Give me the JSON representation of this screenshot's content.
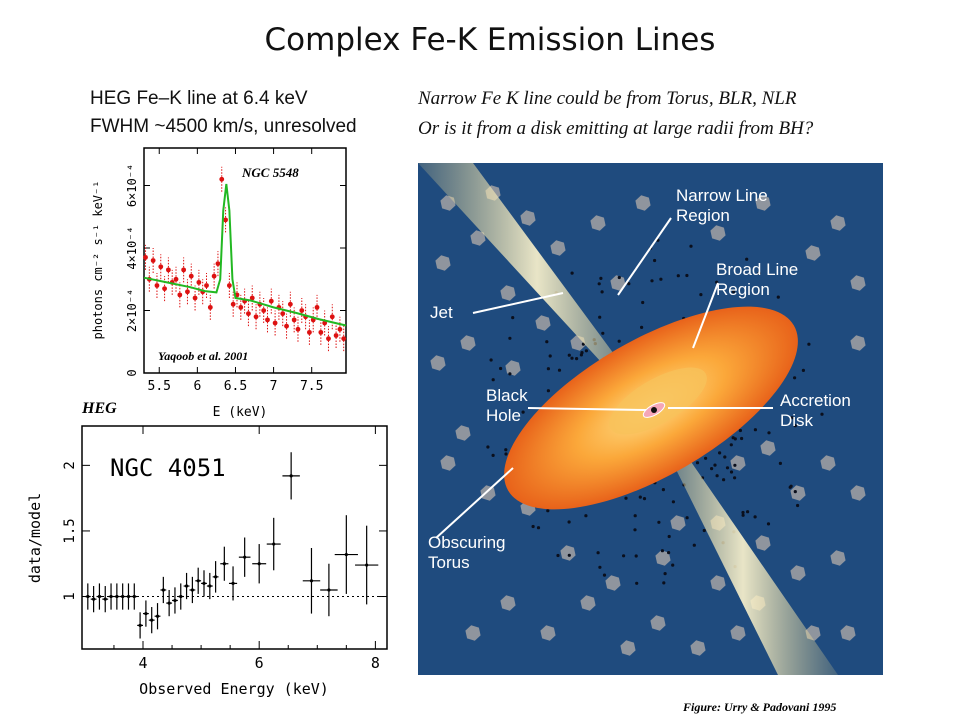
{
  "slide": {
    "title": "Complex Fe-K Emission Lines"
  },
  "left_top": {
    "caption_line1": "HEG Fe–K line at 6.4 keV",
    "caption_line2": "FWHM ~4500 km/s, unresolved",
    "colors": {
      "data": "#dd1111",
      "model": "#22b822"
    }
  },
  "left_bottom": {
    "instrument_label": "HEG",
    "colors": {
      "points": "#000000",
      "reference": "#000000"
    }
  },
  "right_panel": {
    "caption_line1": "Narrow Fe K line could be from Torus, BLR, NLR",
    "caption_line2": "Or is it from a disk emitting at large radii from BH?",
    "labels": {
      "nlr_line1": "Narrow Line",
      "nlr_line2": "Region",
      "blr_line1": "Broad Line",
      "blr_line2": "Region",
      "jet": "Jet",
      "bh_line1": "Black",
      "bh_line2": "Hole",
      "disk_line1": "Accretion",
      "disk_line2": "Disk",
      "torus_line1": "Obscuring",
      "torus_line2": "Torus"
    },
    "credit": "Figure: Urry & Padovani 1995",
    "colors": {
      "background": "#1f4b7e",
      "torus_outer": "#f07a1c",
      "torus_inner": "#fbbf50",
      "clouds": "#8f959e"
    }
  },
  "chart_data": [
    {
      "type": "scatter",
      "title": "NGC 5548",
      "annotation": "Yaqoob et al. 2001",
      "xlabel": "E (keV)",
      "ylabel": "photons cm⁻² s⁻¹ keV⁻¹",
      "xlim": [
        5.3,
        7.95
      ],
      "ylim": [
        0,
        0.00072
      ],
      "x_ticks": [
        5.5,
        6,
        6.5,
        7,
        7.5
      ],
      "x_tick_labels": [
        "5.5",
        "6",
        "6.5",
        "7",
        "7.5"
      ],
      "y_ticks": [
        0,
        0.0002,
        0.0004,
        0.0006
      ],
      "y_tick_labels": [
        "0",
        "2×10⁻⁴",
        "4×10⁻⁴",
        "6×10⁻⁴"
      ],
      "series": [
        {
          "x": [
            5.32,
            5.37,
            5.42,
            5.47,
            5.52,
            5.57,
            5.62,
            5.67,
            5.72,
            5.77,
            5.82,
            5.87,
            5.92,
            5.97,
            6.02,
            6.07,
            6.12,
            6.17,
            6.22,
            6.27,
            6.32,
            6.37,
            6.42,
            6.47,
            6.52,
            6.57,
            6.62,
            6.67,
            6.72,
            6.77,
            6.82,
            6.87,
            6.92,
            6.97,
            7.02,
            7.07,
            7.12,
            7.17,
            7.22,
            7.27,
            7.32,
            7.37,
            7.42,
            7.47,
            7.52,
            7.57,
            7.62,
            7.67,
            7.72,
            7.77,
            7.82,
            7.87,
            7.92
          ],
          "y": [
            0.00037,
            0.0003,
            0.00036,
            0.00028,
            0.00034,
            0.00027,
            0.00033,
            0.00029,
            0.0003,
            0.00025,
            0.00033,
            0.00026,
            0.00031,
            0.00024,
            0.00029,
            0.00026,
            0.00028,
            0.00021,
            0.00031,
            0.00035,
            0.00062,
            0.00049,
            0.00028,
            0.00022,
            0.00025,
            0.00021,
            0.00023,
            0.00019,
            0.00024,
            0.00018,
            0.00022,
            0.0002,
            0.00017,
            0.00023,
            0.00016,
            0.00021,
            0.00019,
            0.00015,
            0.00022,
            0.00017,
            0.00014,
            0.0002,
            0.00018,
            0.00013,
            0.00017,
            0.00021,
            0.00013,
            0.00016,
            0.00011,
            0.00018,
            0.00012,
            0.00014,
            0.00011
          ],
          "err": 4e-05
        },
        {
          "x": [
            5.3,
            5.6,
            5.9,
            6.1,
            6.25,
            6.3,
            6.34,
            6.38,
            6.42,
            6.46,
            6.5,
            6.7,
            7.0,
            7.3,
            7.6,
            7.95
          ],
          "y": [
            0.000305,
            0.00029,
            0.000275,
            0.000262,
            0.000258,
            0.0003,
            0.00052,
            0.000605,
            0.00052,
            0.0003,
            0.00024,
            0.000232,
            0.00021,
            0.000192,
            0.000172,
            0.000152
          ]
        }
      ]
    },
    {
      "type": "scatter",
      "title": "NGC 4051",
      "xlabel": "Observed Energy (keV)",
      "ylabel": "data/model",
      "xlim": [
        2.95,
        8.2
      ],
      "ylim": [
        0.6,
        2.3
      ],
      "x_ticks": [
        4,
        6,
        8
      ],
      "x_tick_labels": [
        "4",
        "6",
        "8"
      ],
      "y_ticks": [
        1,
        1.5,
        2
      ],
      "y_tick_labels": [
        "1",
        "1.5",
        "2"
      ],
      "reference_y": 1,
      "series": [
        {
          "x": [
            3.05,
            3.15,
            3.25,
            3.35,
            3.45,
            3.55,
            3.65,
            3.75,
            3.85,
            3.95,
            4.05,
            4.15,
            4.25,
            4.35,
            4.45,
            4.55,
            4.65,
            4.75,
            4.85,
            4.95,
            5.05,
            5.15,
            5.25,
            5.4,
            5.55,
            5.75,
            6.0,
            6.25,
            6.55,
            6.9,
            7.2,
            7.5,
            7.85
          ],
          "y": [
            1.0,
            0.98,
            1.0,
            0.98,
            1.0,
            1.0,
            1.0,
            1.0,
            1.0,
            0.78,
            0.87,
            0.82,
            0.85,
            1.05,
            0.95,
            0.97,
            1.0,
            1.08,
            1.05,
            1.12,
            1.1,
            1.08,
            1.15,
            1.25,
            1.1,
            1.3,
            1.25,
            1.4,
            1.92,
            1.12,
            1.05,
            1.32,
            1.24
          ],
          "xerr": [
            0.05,
            0.05,
            0.05,
            0.05,
            0.05,
            0.05,
            0.05,
            0.05,
            0.05,
            0.05,
            0.05,
            0.05,
            0.05,
            0.05,
            0.05,
            0.05,
            0.05,
            0.05,
            0.05,
            0.05,
            0.05,
            0.05,
            0.05,
            0.07,
            0.07,
            0.1,
            0.12,
            0.12,
            0.15,
            0.15,
            0.15,
            0.2,
            0.2
          ],
          "yerr": [
            0.1,
            0.1,
            0.1,
            0.1,
            0.1,
            0.1,
            0.1,
            0.1,
            0.1,
            0.1,
            0.1,
            0.1,
            0.1,
            0.1,
            0.1,
            0.1,
            0.1,
            0.1,
            0.1,
            0.1,
            0.1,
            0.1,
            0.12,
            0.13,
            0.13,
            0.15,
            0.15,
            0.2,
            0.18,
            0.25,
            0.2,
            0.3,
            0.3
          ]
        }
      ]
    }
  ]
}
